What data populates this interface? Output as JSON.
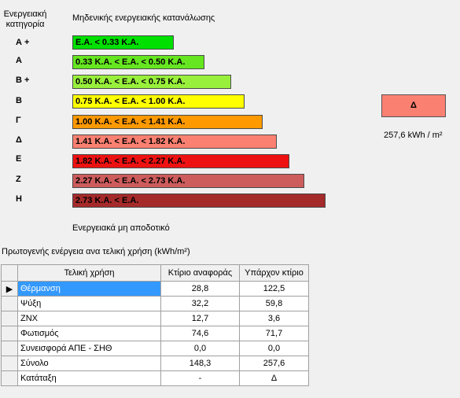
{
  "header": {
    "category_line1": "Ενεργειακή",
    "category_line2": "κατηγορία",
    "zero_consumption": "Μηδενικής ενεργειακής κατανάλωσης",
    "ineffective": "Ενεργειακά μη αποδοτικό"
  },
  "bars": [
    {
      "letter": "Α +",
      "label": "Ε.Α. < 0.33 Κ.Α.",
      "color": "#00e000"
    },
    {
      "letter": "Α",
      "label": "0.33 Κ.Α. <  Ε.Α. < 0.50 Κ.Α.",
      "color": "#66e620"
    },
    {
      "letter": "Β +",
      "label": "0.50 Κ.Α. <  Ε.Α. < 0.75 Κ.Α.",
      "color": "#99f03c"
    },
    {
      "letter": "Β",
      "label": "0.75 Κ.Α. <  Ε.Α. < 1.00 Κ.Α.",
      "color": "#ffff00"
    },
    {
      "letter": "Γ",
      "label": "1.00 Κ.Α. <  Ε.Α. < 1.41 Κ.Α.",
      "color": "#ff9900"
    },
    {
      "letter": "Δ",
      "label": "1.41 Κ.Α. <  Ε.Α. < 1.82 Κ.Α.",
      "color": "#fa8072"
    },
    {
      "letter": "Ε",
      "label": "1.82 Κ.Α. <  Ε.Α. < 2.27 Κ.Α.",
      "color": "#ee1111"
    },
    {
      "letter": "Ζ",
      "label": "2.27 Κ.Α. <  Ε.Α. < 2.73 Κ.Α.",
      "color": "#cd5c5c"
    },
    {
      "letter": "Η",
      "label": "2.73 Κ.Α. <  Ε.Α.",
      "color": "#a52a2a"
    }
  ],
  "rating": {
    "letter": "Δ",
    "value": "257,6 kWh / m²",
    "color": "#fa8072"
  },
  "grid": {
    "title": "Πρωτογενής ενέργεια ανα τελική χρήση (kWh/m²)",
    "columns": [
      "Τελική χρήση",
      "Κτίριο αναφοράς",
      "Υπάρχον κτίριο"
    ],
    "row_indicator": "▶",
    "rows": [
      [
        "Θέρμανση",
        "28,8",
        "122,5"
      ],
      [
        "Ψύξη",
        "32,2",
        "59,8"
      ],
      [
        "ΖΝΧ",
        "12,7",
        "3,6"
      ],
      [
        "Φωτισμός",
        "74,6",
        "71,7"
      ],
      [
        "Συνεισφορά ΑΠΕ - ΣΗΘ",
        "0,0",
        "0,0"
      ],
      [
        "Σύνολο",
        "148,3",
        "257,6"
      ],
      [
        "Κατάταξη",
        "-",
        "Δ"
      ]
    ]
  }
}
